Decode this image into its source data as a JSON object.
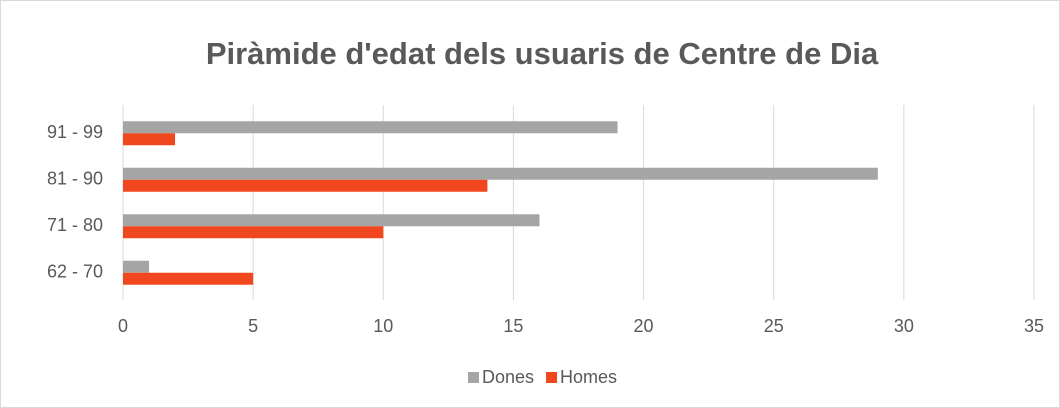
{
  "chart_data": {
    "type": "bar",
    "orientation": "horizontal",
    "title": "Piràmide d'edat dels usuaris de Centre de Dia",
    "categories": [
      "62 - 70",
      "71 - 80",
      "81 - 90",
      "91 - 99"
    ],
    "series": [
      {
        "name": "Dones",
        "color": "#a5a5a5",
        "values": [
          1,
          16,
          29,
          19
        ]
      },
      {
        "name": "Homes",
        "color": "#f0471f",
        "values": [
          5,
          10,
          14,
          2
        ]
      }
    ],
    "xlim": [
      0,
      35
    ],
    "xticks": [
      0,
      5,
      10,
      15,
      20,
      25,
      30,
      35
    ],
    "grid": true,
    "legend": "bottom"
  }
}
